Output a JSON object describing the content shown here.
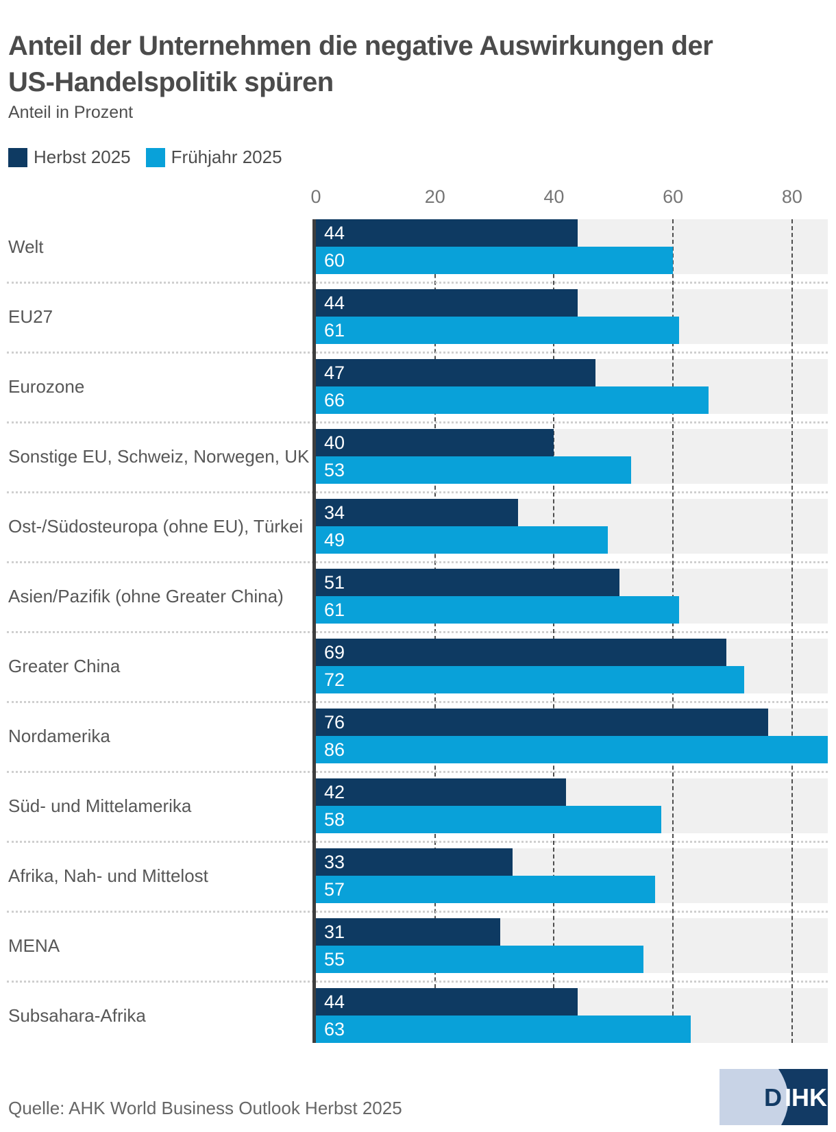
{
  "header": {
    "title_line1": "Anteil der Unternehmen die negative Auswirkungen der",
    "title_line2": "US-Handelspolitik spüren",
    "subtitle": "Anteil in Prozent"
  },
  "legend": [
    {
      "label": "Herbst 2025",
      "color": "#0e3a62"
    },
    {
      "label": "Frühjahr 2025",
      "color": "#09a1d9"
    }
  ],
  "chart_data": {
    "type": "bar",
    "orientation": "horizontal",
    "title": "Anteil der Unternehmen die negative Auswirkungen der US-Handelspolitik spüren",
    "xlabel": "Anteil in Prozent",
    "categories": [
      "Welt",
      "EU27",
      "Eurozone",
      "Sonstige EU, Schweiz, Norwegen, UK",
      "Ost-/Südosteuropa (ohne EU), Türkei",
      "Asien/Pazifik (ohne Greater China)",
      "Greater China",
      "Nordamerika",
      "Süd- und Mittelamerika",
      "Afrika, Nah- und Mittelost",
      "MENA",
      "Subsahara-Afrika"
    ],
    "series": [
      {
        "name": "Herbst 2025",
        "color": "#0e3a62",
        "values": [
          44,
          44,
          47,
          40,
          34,
          51,
          69,
          76,
          42,
          33,
          31,
          44
        ]
      },
      {
        "name": "Frühjahr 2025",
        "color": "#09a1d9",
        "values": [
          60,
          61,
          66,
          53,
          49,
          61,
          72,
          86,
          58,
          57,
          55,
          63
        ]
      }
    ],
    "xticks": [
      0,
      20,
      40,
      60,
      80
    ],
    "xlim": [
      0,
      86
    ],
    "grid": "vertical dashed lines at xticks",
    "legend_position": "top-left",
    "row_background": "#f0f0f0"
  },
  "footer": {
    "source": "Quelle: AHK World Business Outlook Herbst 2025",
    "logo_text": "DIHK"
  },
  "colors": {
    "herbst": "#0e3a62",
    "fruehjahr": "#09a1d9",
    "row_background": "#f0f0f0",
    "axis_line": "#3e3e3e",
    "gridline": "#4d4d4d",
    "separator": "#cfcfcf",
    "tick_text": "#757575",
    "category_text": "#575757",
    "title_text": "#4b4b4b",
    "logo_light": "#c8d3e6",
    "logo_navy": "#123a64"
  }
}
